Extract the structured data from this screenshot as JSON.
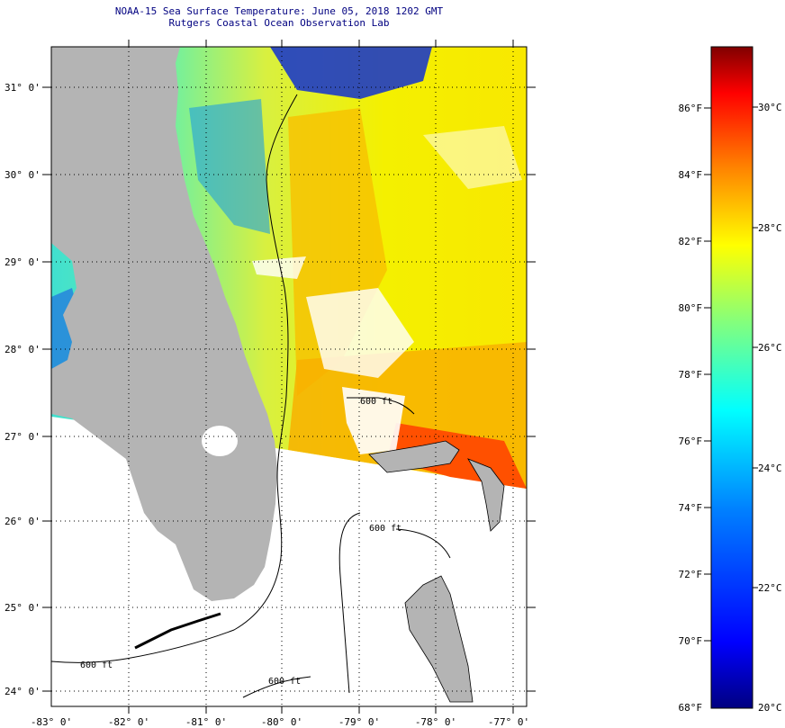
{
  "header": {
    "title_line1": "NOAA-15 Sea Surface Temperature:  June 05, 2018 1202 GMT",
    "title_line2": "Rutgers Coastal Ocean Observation Lab"
  },
  "axes": {
    "lat_labels": [
      "31° 0'",
      "30° 0'",
      "29° 0'",
      "28° 0'",
      "27° 0'",
      "26° 0'",
      "25° 0'",
      "24° 0'"
    ],
    "lon_labels": [
      "-83° 0'",
      "-82° 0'",
      "-81° 0'",
      "-80° 0'",
      "-79° 0'",
      "-78° 0'",
      "-77° 0'"
    ]
  },
  "contours": {
    "label": "600 ft"
  },
  "colorbar": {
    "fahrenheit_labels": [
      "86°F",
      "84°F",
      "82°F",
      "80°F",
      "78°F",
      "76°F",
      "74°F",
      "72°F",
      "70°F",
      "68°F"
    ],
    "celsius_labels": [
      "30°C",
      "28°C",
      "26°C",
      "24°C",
      "22°C",
      "20°C"
    ],
    "colors": [
      "#800000",
      "#ff0000",
      "#ff8000",
      "#ffff00",
      "#80ff80",
      "#00ffff",
      "#0080ff",
      "#0000ff",
      "#000080"
    ]
  },
  "colors": {
    "land": "#b4b4b4",
    "title": "#000080",
    "no_data": "#ffffff"
  }
}
